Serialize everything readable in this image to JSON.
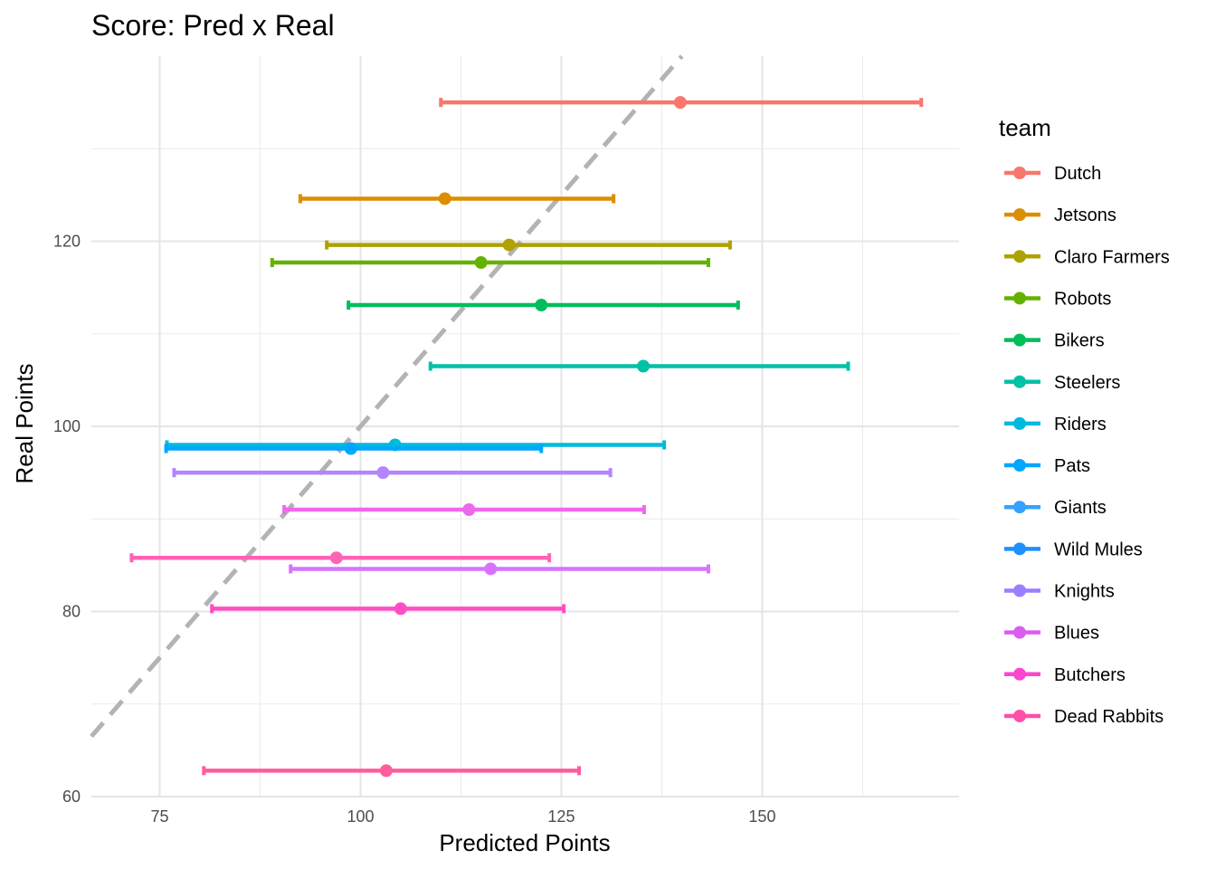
{
  "chart_data": {
    "type": "errorbar",
    "title": "Score: Pred x Real",
    "xlabel": "Predicted Points",
    "ylabel": "Real Points",
    "xlim": [
      66.5,
      174.5
    ],
    "ylim": [
      60,
      140
    ],
    "x_ticks": [
      75,
      100,
      125,
      150
    ],
    "y_ticks": [
      60,
      80,
      100,
      120
    ],
    "x_tick_labels": [
      "75",
      "100",
      "125",
      "150"
    ],
    "y_tick_labels": [
      "60",
      "80",
      "100",
      "120"
    ],
    "grid": true,
    "reference_line": {
      "type": "identity",
      "style": "dashed",
      "color": "#b3b3b3"
    },
    "legend_title": "team",
    "legend_position": "right",
    "series": [
      {
        "name": "Dutch",
        "color": "#F8766D",
        "pred": 139.8,
        "low": 110.0,
        "high": 169.8,
        "real": 135.0
      },
      {
        "name": "Jetsons",
        "color": "#DB8E00",
        "pred": 110.5,
        "low": 92.5,
        "high": 131.5,
        "real": 124.6
      },
      {
        "name": "Claro Farmers",
        "color": "#AEA200",
        "pred": 118.5,
        "low": 95.8,
        "high": 146.0,
        "real": 119.6
      },
      {
        "name": "Robots",
        "color": "#64B200",
        "pred": 115.0,
        "low": 89.0,
        "high": 143.3,
        "real": 117.7
      },
      {
        "name": "Bikers",
        "color": "#00BD5C",
        "pred": 122.5,
        "low": 98.5,
        "high": 147.0,
        "real": 113.1
      },
      {
        "name": "Steelers",
        "color": "#00C1A7",
        "pred": 135.2,
        "low": 108.7,
        "high": 160.7,
        "real": 106.5
      },
      {
        "name": "Riders",
        "color": "#00BADE",
        "pred": 104.3,
        "low": 75.9,
        "high": 137.8,
        "real": 98.0
      },
      {
        "name": "Pats",
        "color": "#00A6FF",
        "pred": 98.8,
        "low": 75.8,
        "high": 122.5,
        "real": 97.6
      },
      {
        "name": "Giants",
        "color": "#B385FF",
        "pred": 102.8,
        "low": 76.8,
        "high": 131.1,
        "real": 95.0
      },
      {
        "name": "Wild Mules",
        "color": "#EF67EB",
        "pred": 113.5,
        "low": 90.5,
        "high": 135.3,
        "real": 91.0
      },
      {
        "name": "Knights",
        "color": "#FF63B6",
        "pred": 97.0,
        "low": 71.5,
        "high": 123.5,
        "real": 85.8
      },
      {
        "name": "Blues",
        "color": "#D973FF",
        "pred": 116.2,
        "low": 91.3,
        "high": 143.3,
        "real": 84.6
      },
      {
        "name": "Butchers",
        "color": "#FF4DC4",
        "pred": 105.0,
        "low": 81.5,
        "high": 125.3,
        "real": 80.3
      },
      {
        "name": "Dead Rabbits",
        "color": "#FF5C9E",
        "pred": 103.2,
        "low": 80.5,
        "high": 127.2,
        "real": 62.8
      }
    ],
    "legend_colors": [
      "#F8766D",
      "#DB8E00",
      "#AEA200",
      "#64B200",
      "#00BD5C",
      "#00C1A7",
      "#00BADE",
      "#00A6FF",
      "#35A2FF",
      "#1E90FF",
      "#9B7FFF",
      "#DB5CF0",
      "#FB46D1",
      "#FF4FA8"
    ]
  }
}
